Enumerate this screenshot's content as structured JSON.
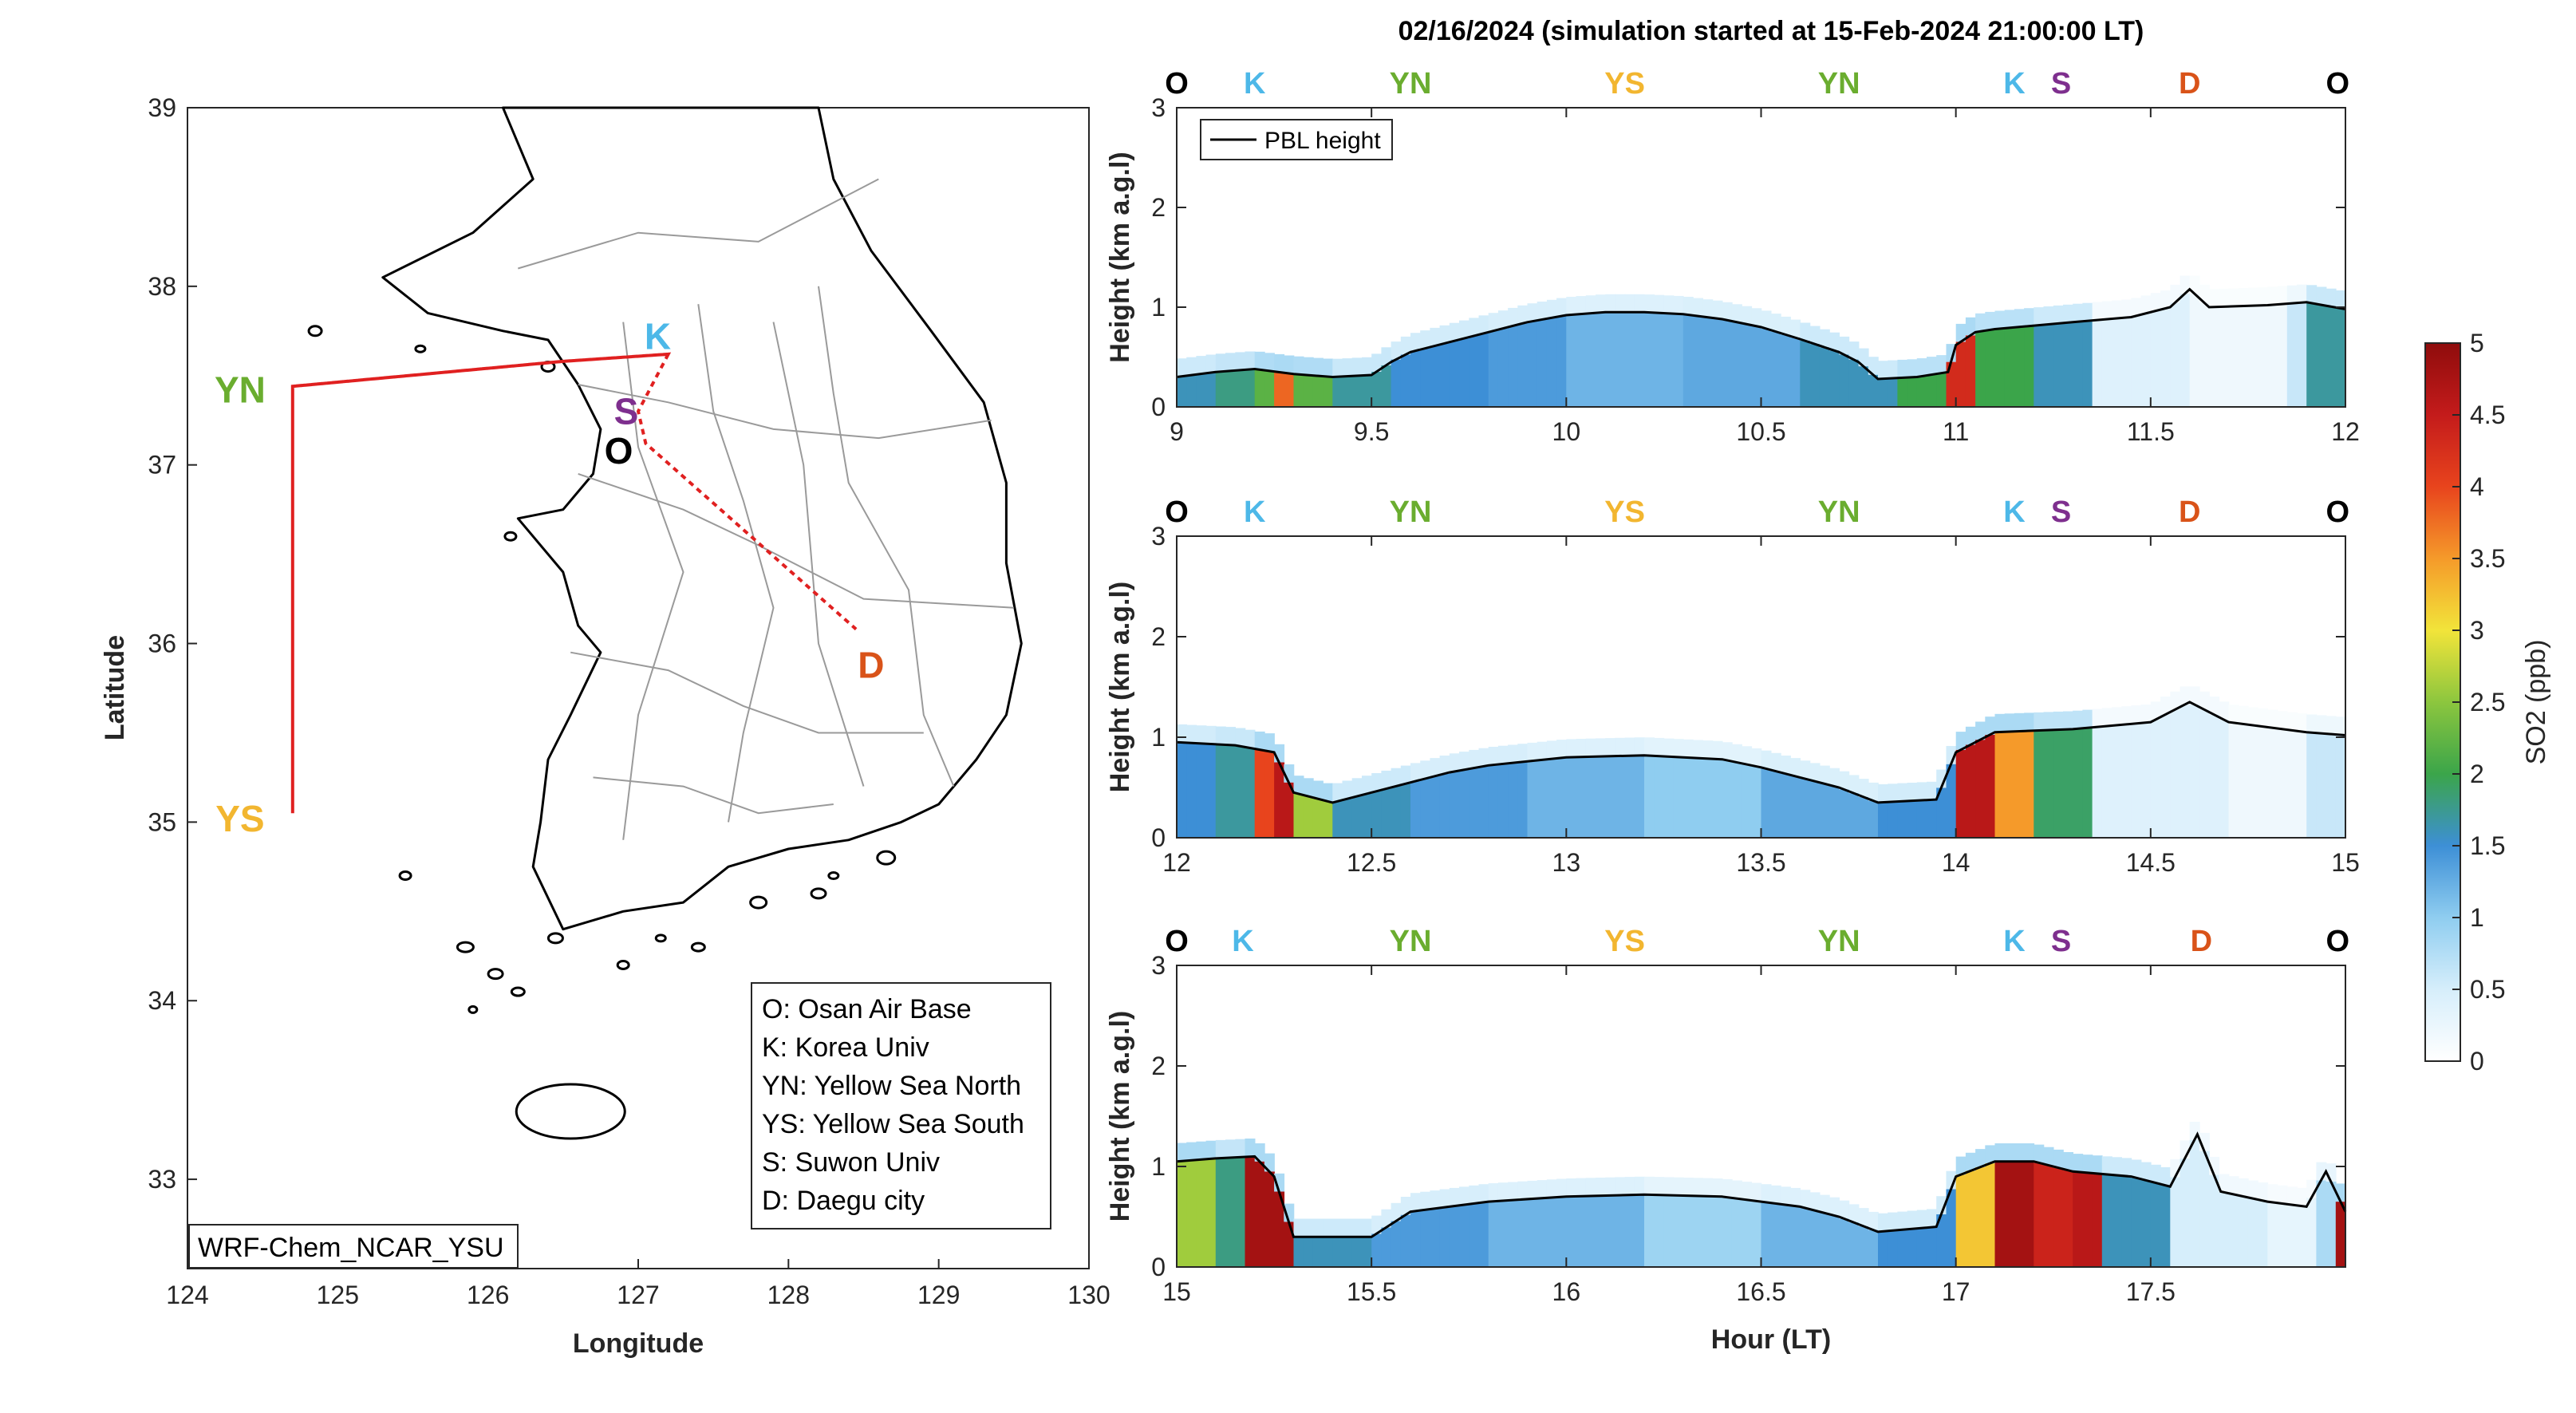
{
  "colors": {
    "O": "#000000",
    "K": "#4db8e8",
    "YN": "#6aad2f",
    "YS": "#f2b630",
    "S": "#7e2f8e",
    "D": "#d95319",
    "track": "#e02020",
    "pbl": "#000000"
  },
  "map": {
    "xlabel": "Longitude",
    "ylabel": "Latitude",
    "xlim": [
      124,
      130
    ],
    "ylim": [
      32.5,
      39
    ],
    "xticks": [
      "124",
      "125",
      "126",
      "127",
      "128",
      "129",
      "130"
    ],
    "yticks": [
      "33",
      "34",
      "35",
      "36",
      "37",
      "38",
      "39"
    ],
    "model_label": "WRF-Chem_NCAR_YSU",
    "sites": [
      {
        "code": "K",
        "lon": 127.13,
        "lat": 37.72
      },
      {
        "code": "YN",
        "lon": 124.35,
        "lat": 37.42
      },
      {
        "code": "S",
        "lon": 126.92,
        "lat": 37.3
      },
      {
        "code": "O",
        "lon": 126.87,
        "lat": 37.08
      },
      {
        "code": "D",
        "lon": 128.55,
        "lat": 35.88
      },
      {
        "code": "YS",
        "lon": 124.35,
        "lat": 35.02
      }
    ],
    "track": [
      [
        127.2,
        37.62
      ],
      [
        126.5,
        37.58
      ],
      [
        124.7,
        37.44
      ],
      [
        124.7,
        35.05
      ],
      [
        124.7,
        37.44
      ],
      [
        126.5,
        37.58
      ],
      [
        127.2,
        37.62
      ],
      [
        127.0,
        37.3
      ],
      [
        127.05,
        37.12
      ],
      [
        128.45,
        36.08
      ]
    ],
    "legend": [
      "O: Osan Air Base",
      "K: Korea Univ",
      "YN: Yellow Sea North",
      "YS: Yellow Sea South",
      "S: Suwon Univ",
      "D: Daegu city"
    ]
  },
  "chart_data": {
    "type": "heatmap",
    "title": "02/16/2024 (simulation started at 15-Feb-2024 21:00:00 LT)",
    "xlabel": "Hour (LT)",
    "ylabel": "Height (km a.g.l)",
    "colorbar_label": "SO2 (ppb)",
    "clim": [
      0,
      5
    ],
    "colorbar_ticks": [
      "0",
      "0.5",
      "1",
      "1.5",
      "2",
      "2.5",
      "3",
      "3.5",
      "4",
      "4.5",
      "5"
    ],
    "ylim": [
      0,
      3
    ],
    "legend_entry": "PBL height",
    "panels": [
      {
        "xlim": [
          9,
          12
        ],
        "xticks": [
          "9",
          "9.5",
          "10",
          "10.5",
          "11",
          "11.5",
          "12"
        ],
        "yticks": [
          "0",
          "1",
          "2",
          "3"
        ],
        "site_labels": [
          {
            "code": "O",
            "x": 9.0
          },
          {
            "code": "K",
            "x": 9.2
          },
          {
            "code": "YN",
            "x": 9.6
          },
          {
            "code": "YS",
            "x": 10.15
          },
          {
            "code": "YN",
            "x": 10.7
          },
          {
            "code": "K",
            "x": 11.15
          },
          {
            "code": "S",
            "x": 11.27
          },
          {
            "code": "D",
            "x": 11.6
          },
          {
            "code": "O",
            "x": 11.98
          }
        ],
        "pbl": [
          [
            9,
            0.3
          ],
          [
            9.1,
            0.35
          ],
          [
            9.2,
            0.38
          ],
          [
            9.3,
            0.33
          ],
          [
            9.4,
            0.3
          ],
          [
            9.5,
            0.32
          ],
          [
            9.55,
            0.45
          ],
          [
            9.6,
            0.55
          ],
          [
            9.7,
            0.65
          ],
          [
            9.8,
            0.75
          ],
          [
            9.9,
            0.85
          ],
          [
            10.0,
            0.92
          ],
          [
            10.1,
            0.95
          ],
          [
            10.2,
            0.95
          ],
          [
            10.3,
            0.93
          ],
          [
            10.4,
            0.88
          ],
          [
            10.5,
            0.8
          ],
          [
            10.6,
            0.68
          ],
          [
            10.7,
            0.55
          ],
          [
            10.75,
            0.45
          ],
          [
            10.8,
            0.28
          ],
          [
            10.9,
            0.3
          ],
          [
            10.98,
            0.35
          ],
          [
            11.0,
            0.62
          ],
          [
            11.05,
            0.75
          ],
          [
            11.1,
            0.78
          ],
          [
            11.3,
            0.85
          ],
          [
            11.45,
            0.9
          ],
          [
            11.55,
            1.0
          ],
          [
            11.6,
            1.18
          ],
          [
            11.65,
            1.0
          ],
          [
            11.8,
            1.02
          ],
          [
            11.9,
            1.05
          ],
          [
            12,
            0.98
          ]
        ],
        "so2_columns": [
          [
            9.0,
            1.6
          ],
          [
            9.1,
            1.8
          ],
          [
            9.2,
            2.2
          ],
          [
            9.25,
            3.8
          ],
          [
            9.3,
            2.2
          ],
          [
            9.4,
            1.7
          ],
          [
            9.55,
            1.5
          ],
          [
            9.8,
            1.4
          ],
          [
            10.0,
            1.2
          ],
          [
            10.3,
            1.3
          ],
          [
            10.6,
            1.6
          ],
          [
            10.85,
            2.0
          ],
          [
            10.98,
            4.3
          ],
          [
            11.05,
            2.0
          ],
          [
            11.2,
            1.6
          ],
          [
            11.35,
            0.4
          ],
          [
            11.6,
            0.2
          ],
          [
            11.85,
            0.6
          ],
          [
            11.9,
            1.7
          ],
          [
            12.0,
            1.8
          ]
        ]
      },
      {
        "xlim": [
          12,
          15
        ],
        "xticks": [
          "12",
          "12.5",
          "13",
          "13.5",
          "14",
          "14.5",
          "15"
        ],
        "yticks": [
          "0",
          "1",
          "2",
          "3"
        ],
        "site_labels": [
          {
            "code": "O",
            "x": 12.0
          },
          {
            "code": "K",
            "x": 12.2
          },
          {
            "code": "YN",
            "x": 12.6
          },
          {
            "code": "YS",
            "x": 13.15
          },
          {
            "code": "YN",
            "x": 13.7
          },
          {
            "code": "K",
            "x": 14.15
          },
          {
            "code": "S",
            "x": 14.27
          },
          {
            "code": "D",
            "x": 14.6
          },
          {
            "code": "O",
            "x": 14.98
          }
        ],
        "pbl": [
          [
            12,
            0.95
          ],
          [
            12.15,
            0.92
          ],
          [
            12.25,
            0.85
          ],
          [
            12.3,
            0.45
          ],
          [
            12.4,
            0.35
          ],
          [
            12.5,
            0.45
          ],
          [
            12.6,
            0.55
          ],
          [
            12.7,
            0.65
          ],
          [
            12.8,
            0.72
          ],
          [
            13.0,
            0.8
          ],
          [
            13.2,
            0.82
          ],
          [
            13.4,
            0.78
          ],
          [
            13.5,
            0.7
          ],
          [
            13.6,
            0.6
          ],
          [
            13.7,
            0.5
          ],
          [
            13.8,
            0.35
          ],
          [
            13.95,
            0.38
          ],
          [
            14.0,
            0.85
          ],
          [
            14.1,
            1.05
          ],
          [
            14.3,
            1.08
          ],
          [
            14.5,
            1.15
          ],
          [
            14.6,
            1.35
          ],
          [
            14.7,
            1.15
          ],
          [
            14.9,
            1.05
          ],
          [
            15,
            1.02
          ]
        ],
        "so2_columns": [
          [
            12.0,
            1.5
          ],
          [
            12.1,
            1.7
          ],
          [
            12.2,
            4.0
          ],
          [
            12.25,
            4.6
          ],
          [
            12.3,
            2.6
          ],
          [
            12.4,
            1.6
          ],
          [
            12.6,
            1.4
          ],
          [
            12.9,
            1.2
          ],
          [
            13.2,
            1.0
          ],
          [
            13.5,
            1.3
          ],
          [
            13.8,
            1.5
          ],
          [
            14.0,
            4.6
          ],
          [
            14.1,
            3.5
          ],
          [
            14.2,
            1.9
          ],
          [
            14.35,
            0.4
          ],
          [
            14.7,
            0.2
          ],
          [
            14.9,
            0.6
          ],
          [
            15.0,
            2.0
          ]
        ]
      },
      {
        "xlim": [
          15,
          18
        ],
        "xticks": [
          "15",
          "15.5",
          "16",
          "16.5",
          "17",
          "17.5"
        ],
        "yticks": [
          "0",
          "1",
          "2",
          "3"
        ],
        "site_labels": [
          {
            "code": "O",
            "x": 15.0
          },
          {
            "code": "K",
            "x": 15.17
          },
          {
            "code": "YN",
            "x": 15.6
          },
          {
            "code": "YS",
            "x": 16.15
          },
          {
            "code": "YN",
            "x": 16.7
          },
          {
            "code": "K",
            "x": 17.15
          },
          {
            "code": "S",
            "x": 17.27
          },
          {
            "code": "D",
            "x": 17.63
          },
          {
            "code": "O",
            "x": 17.98
          }
        ],
        "pbl": [
          [
            15,
            1.05
          ],
          [
            15.1,
            1.08
          ],
          [
            15.2,
            1.1
          ],
          [
            15.25,
            0.9
          ],
          [
            15.3,
            0.3
          ],
          [
            15.4,
            0.3
          ],
          [
            15.5,
            0.3
          ],
          [
            15.6,
            0.55
          ],
          [
            15.7,
            0.6
          ],
          [
            15.8,
            0.65
          ],
          [
            16.0,
            0.7
          ],
          [
            16.2,
            0.72
          ],
          [
            16.4,
            0.7
          ],
          [
            16.6,
            0.6
          ],
          [
            16.7,
            0.5
          ],
          [
            16.8,
            0.35
          ],
          [
            16.95,
            0.4
          ],
          [
            17.0,
            0.9
          ],
          [
            17.1,
            1.05
          ],
          [
            17.2,
            1.05
          ],
          [
            17.3,
            0.95
          ],
          [
            17.45,
            0.9
          ],
          [
            17.55,
            0.8
          ],
          [
            17.62,
            1.32
          ],
          [
            17.68,
            0.75
          ],
          [
            17.8,
            0.65
          ],
          [
            17.9,
            0.6
          ],
          [
            17.95,
            0.95
          ],
          [
            18,
            0.55
          ]
        ],
        "so2_columns": [
          [
            15.0,
            2.6
          ],
          [
            15.1,
            1.8
          ],
          [
            15.18,
            4.8
          ],
          [
            15.25,
            4.8
          ],
          [
            15.3,
            1.6
          ],
          [
            15.5,
            1.4
          ],
          [
            15.8,
            1.2
          ],
          [
            16.2,
            0.9
          ],
          [
            16.5,
            1.2
          ],
          [
            16.8,
            1.5
          ],
          [
            17.0,
            3.2
          ],
          [
            17.1,
            4.8
          ],
          [
            17.2,
            4.4
          ],
          [
            17.3,
            4.6
          ],
          [
            17.38,
            1.6
          ],
          [
            17.55,
            0.5
          ],
          [
            17.8,
            0.3
          ],
          [
            17.93,
            0.8
          ],
          [
            17.98,
            4.8
          ]
        ]
      }
    ]
  }
}
